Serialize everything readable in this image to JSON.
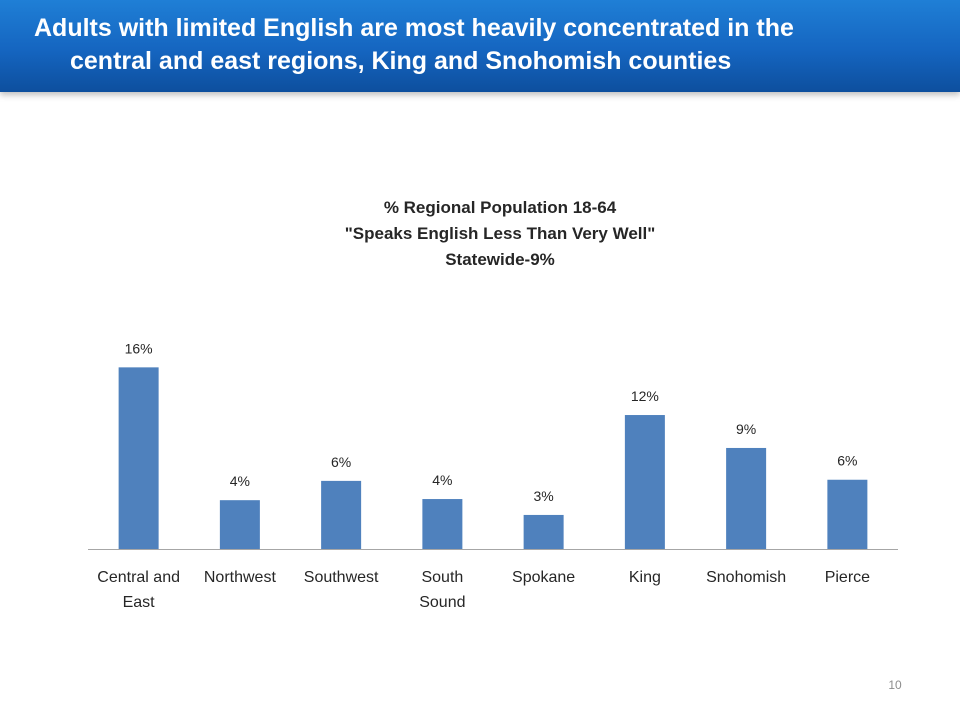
{
  "slide": {
    "title_line1": "Adults with limited English are most heavily concentrated in the",
    "title_line2": "central and east regions, King and Snohomish counties",
    "page_number": "10"
  },
  "colors": {
    "header": "#1565c0",
    "bar": "#4f81bd",
    "text": "#262626"
  },
  "chart_data": {
    "type": "bar",
    "title_lines": [
      "% Regional Population 18-64",
      "\"Speaks English Less Than Very Well\"",
      "Statewide-9%"
    ],
    "categories": [
      [
        "Central and",
        "East"
      ],
      [
        "Northwest"
      ],
      [
        "Southwest"
      ],
      [
        "South",
        "Sound"
      ],
      [
        "Spokane"
      ],
      [
        "King"
      ],
      [
        "Snohomish"
      ],
      [
        "Pierce"
      ]
    ],
    "values": [
      16.0,
      4.3,
      6.0,
      4.4,
      3.0,
      11.8,
      8.9,
      6.1
    ],
    "data_labels": [
      "16%",
      "4%",
      "6%",
      "4%",
      "3%",
      "12%",
      "9%",
      "6%"
    ],
    "ylim": [
      0,
      17
    ],
    "grid": false,
    "legend": "none"
  }
}
